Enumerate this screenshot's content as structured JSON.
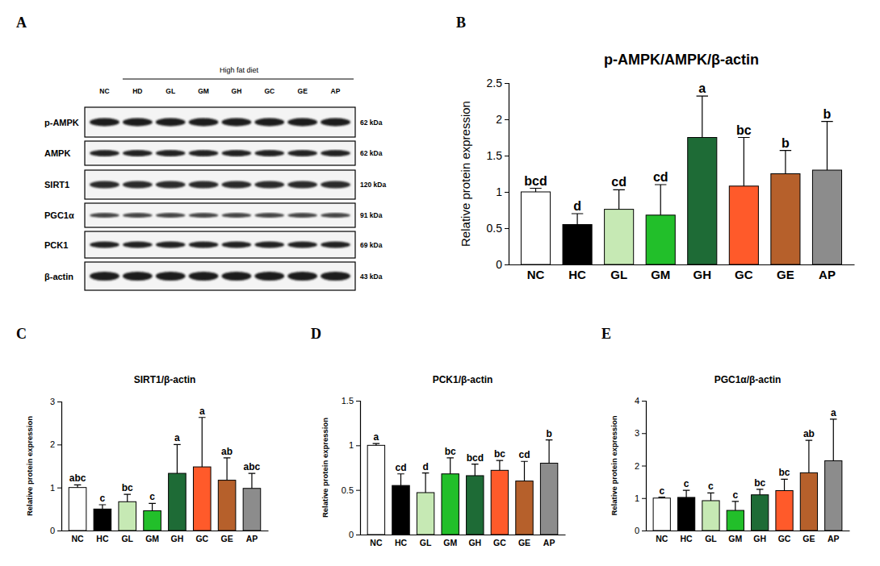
{
  "blot": {
    "panel": "A",
    "group_label": "High fat diet",
    "lanes": [
      "NC",
      "HD",
      "GL",
      "GM",
      "GH",
      "GC",
      "GE",
      "AP"
    ],
    "rows": [
      {
        "name": "p-AMPK",
        "size": "62 kDa"
      },
      {
        "name": "AMPK",
        "size": "62 kDa"
      },
      {
        "name": "SIRT1",
        "size": "120 kDa"
      },
      {
        "name": "PGC1α",
        "size": "91 kDa"
      },
      {
        "name": "PCK1",
        "size": "69 kDa"
      },
      {
        "name": "β-actin",
        "size": "43 kDa"
      }
    ]
  },
  "chart_data": [
    {
      "type": "bar",
      "panel": "B",
      "title": "p-AMPK/AMPK/β-actin",
      "y_label": "Relative protein expression",
      "categories": [
        "NC",
        "HC",
        "GL",
        "GM",
        "GH",
        "GC",
        "GE",
        "AP"
      ],
      "values": [
        1.0,
        0.55,
        0.76,
        0.68,
        1.75,
        1.08,
        1.25,
        1.3
      ],
      "errors": [
        0.05,
        0.15,
        0.27,
        0.42,
        0.57,
        0.67,
        0.32,
        0.67
      ],
      "annotations": [
        "bcd",
        "d",
        "cd",
        "cd",
        "a",
        "bc",
        "b",
        "b"
      ],
      "colors": [
        "#ffffff",
        "#000000",
        "#c6e9b4",
        "#22bf2a",
        "#1e6b36",
        "#ff5a2a",
        "#b6602b",
        "#8c8c8c"
      ],
      "ylim": [
        0,
        2.5
      ],
      "yticks": [
        0,
        0.5,
        1,
        1.5,
        2,
        2.5
      ]
    },
    {
      "type": "bar",
      "panel": "C",
      "title": "SIRT1/β-actin",
      "y_label": "Relative protein expression",
      "categories": [
        "NC",
        "HC",
        "GL",
        "GM",
        "GH",
        "GC",
        "GE",
        "AP"
      ],
      "values": [
        1.0,
        0.5,
        0.67,
        0.46,
        1.33,
        1.48,
        1.17,
        0.98
      ],
      "errors": [
        0.06,
        0.1,
        0.17,
        0.17,
        0.67,
        1.15,
        0.52,
        0.35
      ],
      "annotations": [
        "abc",
        "c",
        "bc",
        "c",
        "a",
        "a",
        "ab",
        "abc"
      ],
      "colors": [
        "#ffffff",
        "#000000",
        "#c6e9b4",
        "#22bf2a",
        "#1e6b36",
        "#ff5a2a",
        "#b6602b",
        "#8c8c8c"
      ],
      "ylim": [
        0,
        3
      ],
      "yticks": [
        0,
        1,
        2,
        3
      ]
    },
    {
      "type": "bar",
      "panel": "D",
      "title": "PCK1/β-actin",
      "y_label": "Relative protein expression",
      "categories": [
        "NC",
        "HC",
        "GL",
        "GM",
        "GH",
        "GC",
        "GE",
        "AP"
      ],
      "values": [
        1.0,
        0.55,
        0.47,
        0.68,
        0.66,
        0.72,
        0.6,
        0.8
      ],
      "errors": [
        0.02,
        0.13,
        0.22,
        0.18,
        0.13,
        0.11,
        0.22,
        0.26
      ],
      "annotations": [
        "a",
        "cd",
        "d",
        "bc",
        "bcd",
        "bc",
        "cd",
        "b"
      ],
      "colors": [
        "#ffffff",
        "#000000",
        "#c6e9b4",
        "#22bf2a",
        "#1e6b36",
        "#ff5a2a",
        "#b6602b",
        "#8c8c8c"
      ],
      "ylim": [
        0,
        1.5
      ],
      "yticks": [
        0,
        0.5,
        1,
        1.5
      ]
    },
    {
      "type": "bar",
      "panel": "E",
      "title": "PGC1α/β-actin",
      "y_label": "Relative protein expression",
      "categories": [
        "NC",
        "HC",
        "GL",
        "GM",
        "GH",
        "GC",
        "GE",
        "AP"
      ],
      "values": [
        1.0,
        1.02,
        0.92,
        0.62,
        1.1,
        1.23,
        1.78,
        2.15
      ],
      "errors": [
        0.03,
        0.22,
        0.24,
        0.28,
        0.17,
        0.35,
        1.0,
        1.28
      ],
      "annotations": [
        "c",
        "c",
        "c",
        "c",
        "bc",
        "bc",
        "ab",
        "a"
      ],
      "colors": [
        "#ffffff",
        "#000000",
        "#c6e9b4",
        "#22bf2a",
        "#1e6b36",
        "#ff5a2a",
        "#b6602b",
        "#8c8c8c"
      ],
      "ylim": [
        0,
        4
      ],
      "yticks": [
        0,
        1,
        2,
        3,
        4
      ]
    }
  ]
}
